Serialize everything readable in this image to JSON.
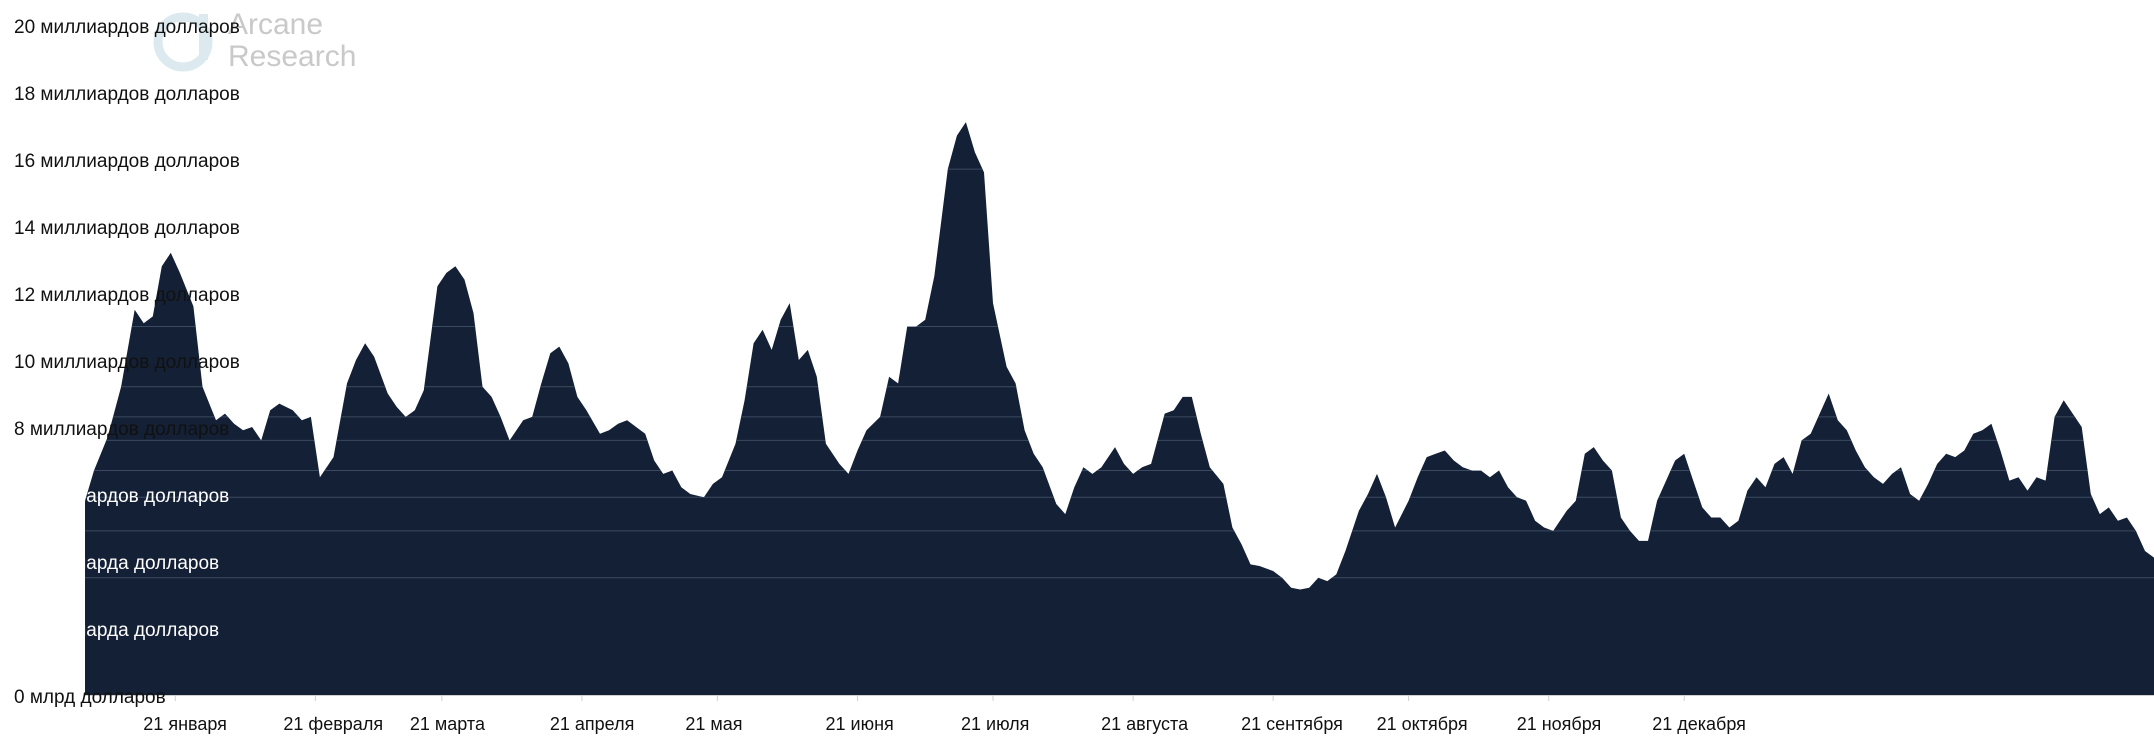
{
  "logo": {
    "line1": "Arcane",
    "line2": "Research",
    "icon": "arcane-logo-icon",
    "color": "#c9c9c9"
  },
  "colors": {
    "area": "#142035",
    "band": "#3b4a60",
    "axis": "#d0d0d0"
  },
  "chart_data": {
    "type": "area",
    "title": "",
    "xlabel": "",
    "ylabel": "",
    "ylim": [
      0,
      20
    ],
    "grid": false,
    "y_ticks": [
      {
        "value": 0,
        "label": "0 млрд долларов"
      },
      {
        "value": 2,
        "label": "2 миллиарда долларов"
      },
      {
        "value": 4,
        "label": "4 миллиарда долларов"
      },
      {
        "value": 6,
        "label": "6 миллиардов долларов"
      },
      {
        "value": 8,
        "label": "8 миллиардов долларов"
      },
      {
        "value": 10,
        "label": "10 миллиардов долларов"
      },
      {
        "value": 12,
        "label": "12 миллиардов долларов"
      },
      {
        "value": 14,
        "label": "14 миллиардов долларов"
      },
      {
        "value": 16,
        "label": "16 миллиардов долларов"
      },
      {
        "value": 18,
        "label": "18 миллиардов долларов"
      },
      {
        "value": 20,
        "label": "20 миллиардов долларов"
      }
    ],
    "x_ticks": [
      {
        "label": "21 января",
        "x": "2021-01-21"
      },
      {
        "label": "21 февраля",
        "x": "2021-02-21"
      },
      {
        "label": "21 марта",
        "x": "2021-03-21"
      },
      {
        "label": "21 апреля",
        "x": "2021-04-21"
      },
      {
        "label": "21 мая",
        "x": "2021-05-21"
      },
      {
        "label": "21 июня",
        "x": "2021-06-21"
      },
      {
        "label": "21 июля",
        "x": "2021-07-21"
      },
      {
        "label": "21 августа",
        "x": "2021-08-21"
      },
      {
        "label": "21 сентября",
        "x": "2021-09-21"
      },
      {
        "label": "21 октября",
        "x": "2021-10-21"
      },
      {
        "label": "21 ноября",
        "x": "2021-11-21"
      },
      {
        "label": "21 декабря",
        "x": "2021-12-21"
      }
    ],
    "series": [
      {
        "points": [
          [
            "2021-01-01",
            5.8
          ],
          [
            "2021-01-03",
            6.7
          ],
          [
            "2021-01-06",
            7.7
          ],
          [
            "2021-01-09",
            9.2
          ],
          [
            "2021-01-12",
            11.5
          ],
          [
            "2021-01-14",
            11.1
          ],
          [
            "2021-01-16",
            11.3
          ],
          [
            "2021-01-18",
            12.8
          ],
          [
            "2021-01-20",
            13.2
          ],
          [
            "2021-01-22",
            12.6
          ],
          [
            "2021-01-25",
            11.6
          ],
          [
            "2021-01-27",
            9.2
          ],
          [
            "2021-01-30",
            8.2
          ],
          [
            "2021-02-01",
            8.4
          ],
          [
            "2021-02-03",
            8.1
          ],
          [
            "2021-02-05",
            7.9
          ],
          [
            "2021-02-07",
            8.0
          ],
          [
            "2021-02-09",
            7.6
          ],
          [
            "2021-02-11",
            8.5
          ],
          [
            "2021-02-13",
            8.7
          ],
          [
            "2021-02-16",
            8.5
          ],
          [
            "2021-02-18",
            8.2
          ],
          [
            "2021-02-20",
            8.3
          ],
          [
            "2021-02-22",
            6.5
          ],
          [
            "2021-02-25",
            7.1
          ],
          [
            "2021-02-28",
            9.3
          ],
          [
            "2021-03-02",
            10.0
          ],
          [
            "2021-03-04",
            10.5
          ],
          [
            "2021-03-06",
            10.1
          ],
          [
            "2021-03-09",
            9.0
          ],
          [
            "2021-03-11",
            8.6
          ],
          [
            "2021-03-13",
            8.3
          ],
          [
            "2021-03-15",
            8.5
          ],
          [
            "2021-03-17",
            9.1
          ],
          [
            "2021-03-20",
            12.2
          ],
          [
            "2021-03-22",
            12.6
          ],
          [
            "2021-03-24",
            12.8
          ],
          [
            "2021-03-26",
            12.4
          ],
          [
            "2021-03-28",
            11.4
          ],
          [
            "2021-03-30",
            9.2
          ],
          [
            "2021-04-01",
            8.9
          ],
          [
            "2021-04-03",
            8.3
          ],
          [
            "2021-04-05",
            7.6
          ],
          [
            "2021-04-08",
            8.2
          ],
          [
            "2021-04-10",
            8.3
          ],
          [
            "2021-04-12",
            9.3
          ],
          [
            "2021-04-14",
            10.2
          ],
          [
            "2021-04-16",
            10.4
          ],
          [
            "2021-04-18",
            9.9
          ],
          [
            "2021-04-20",
            8.9
          ],
          [
            "2021-04-22",
            8.5
          ],
          [
            "2021-04-25",
            7.8
          ],
          [
            "2021-04-27",
            7.9
          ],
          [
            "2021-04-29",
            8.1
          ],
          [
            "2021-05-01",
            8.2
          ],
          [
            "2021-05-03",
            8.0
          ],
          [
            "2021-05-05",
            7.8
          ],
          [
            "2021-05-07",
            7.0
          ],
          [
            "2021-05-09",
            6.6
          ],
          [
            "2021-05-11",
            6.7
          ],
          [
            "2021-05-13",
            6.2
          ],
          [
            "2021-05-15",
            6.0
          ],
          [
            "2021-05-18",
            5.9
          ],
          [
            "2021-05-20",
            6.3
          ],
          [
            "2021-05-22",
            6.5
          ],
          [
            "2021-05-25",
            7.5
          ],
          [
            "2021-05-27",
            8.8
          ],
          [
            "2021-05-29",
            10.5
          ],
          [
            "2021-05-31",
            10.9
          ],
          [
            "2021-06-02",
            10.3
          ],
          [
            "2021-06-04",
            11.2
          ],
          [
            "2021-06-06",
            11.7
          ],
          [
            "2021-06-08",
            10.0
          ],
          [
            "2021-06-10",
            10.3
          ],
          [
            "2021-06-12",
            9.5
          ],
          [
            "2021-06-14",
            7.5
          ],
          [
            "2021-06-17",
            6.9
          ],
          [
            "2021-06-19",
            6.6
          ],
          [
            "2021-06-21",
            7.3
          ],
          [
            "2021-06-23",
            7.9
          ],
          [
            "2021-06-26",
            8.3
          ],
          [
            "2021-06-28",
            9.5
          ],
          [
            "2021-06-30",
            9.3
          ],
          [
            "2021-07-02",
            11.0
          ],
          [
            "2021-07-04",
            11.0
          ],
          [
            "2021-07-06",
            11.2
          ],
          [
            "2021-07-08",
            12.5
          ],
          [
            "2021-07-11",
            15.7
          ],
          [
            "2021-07-13",
            16.7
          ],
          [
            "2021-07-15",
            17.1
          ],
          [
            "2021-07-17",
            16.2
          ],
          [
            "2021-07-19",
            15.6
          ],
          [
            "2021-07-21",
            11.7
          ],
          [
            "2021-07-24",
            9.8
          ],
          [
            "2021-07-26",
            9.3
          ],
          [
            "2021-07-28",
            7.9
          ],
          [
            "2021-07-30",
            7.2
          ],
          [
            "2021-08-01",
            6.8
          ],
          [
            "2021-08-04",
            5.7
          ],
          [
            "2021-08-06",
            5.4
          ],
          [
            "2021-08-08",
            6.2
          ],
          [
            "2021-08-10",
            6.8
          ],
          [
            "2021-08-12",
            6.6
          ],
          [
            "2021-08-14",
            6.8
          ],
          [
            "2021-08-17",
            7.4
          ],
          [
            "2021-08-19",
            6.9
          ],
          [
            "2021-08-21",
            6.6
          ],
          [
            "2021-08-23",
            6.8
          ],
          [
            "2021-08-25",
            6.9
          ],
          [
            "2021-08-28",
            8.4
          ],
          [
            "2021-08-30",
            8.5
          ],
          [
            "2021-09-01",
            8.9
          ],
          [
            "2021-09-03",
            8.9
          ],
          [
            "2021-09-05",
            7.8
          ],
          [
            "2021-09-07",
            6.8
          ],
          [
            "2021-09-10",
            6.3
          ],
          [
            "2021-09-12",
            5.0
          ],
          [
            "2021-09-14",
            4.5
          ],
          [
            "2021-09-16",
            3.9
          ],
          [
            "2021-09-18",
            3.85
          ],
          [
            "2021-09-21",
            3.7
          ],
          [
            "2021-09-23",
            3.5
          ],
          [
            "2021-09-25",
            3.2
          ],
          [
            "2021-09-27",
            3.15
          ],
          [
            "2021-09-29",
            3.2
          ],
          [
            "2021-10-01",
            3.5
          ],
          [
            "2021-10-03",
            3.4
          ],
          [
            "2021-10-05",
            3.6
          ],
          [
            "2021-10-07",
            4.3
          ],
          [
            "2021-10-10",
            5.5
          ],
          [
            "2021-10-12",
            6.0
          ],
          [
            "2021-10-14",
            6.6
          ],
          [
            "2021-10-16",
            5.9
          ],
          [
            "2021-10-18",
            5.0
          ],
          [
            "2021-10-21",
            5.8
          ],
          [
            "2021-10-23",
            6.5
          ],
          [
            "2021-10-25",
            7.1
          ],
          [
            "2021-10-27",
            7.2
          ],
          [
            "2021-10-29",
            7.3
          ],
          [
            "2021-10-31",
            7.0
          ],
          [
            "2021-11-02",
            6.8
          ],
          [
            "2021-11-04",
            6.7
          ],
          [
            "2021-11-06",
            6.7
          ],
          [
            "2021-11-08",
            6.5
          ],
          [
            "2021-11-10",
            6.7
          ],
          [
            "2021-11-12",
            6.2
          ],
          [
            "2021-11-14",
            5.9
          ],
          [
            "2021-11-16",
            5.8
          ],
          [
            "2021-11-18",
            5.2
          ],
          [
            "2021-11-20",
            5.0
          ],
          [
            "2021-11-22",
            4.9
          ],
          [
            "2021-11-25",
            5.5
          ],
          [
            "2021-11-27",
            5.8
          ],
          [
            "2021-11-29",
            7.2
          ],
          [
            "2021-12-01",
            7.4
          ],
          [
            "2021-12-03",
            7.0
          ],
          [
            "2021-12-05",
            6.7
          ],
          [
            "2021-12-07",
            5.3
          ],
          [
            "2021-12-09",
            4.9
          ],
          [
            "2021-12-11",
            4.6
          ],
          [
            "2021-12-13",
            4.6
          ],
          [
            "2021-12-15",
            5.8
          ],
          [
            "2021-12-17",
            6.4
          ],
          [
            "2021-12-19",
            7.0
          ],
          [
            "2021-12-21",
            7.2
          ],
          [
            "2021-12-23",
            6.4
          ],
          [
            "2021-12-25",
            5.6
          ],
          [
            "2021-12-27",
            5.3
          ],
          [
            "2021-12-29",
            5.3
          ],
          [
            "2021-12-31",
            5.0
          ],
          [
            "2022-01-02",
            5.2
          ],
          [
            "2022-01-04",
            6.1
          ],
          [
            "2022-01-06",
            6.5
          ],
          [
            "2022-01-08",
            6.2
          ],
          [
            "2022-01-10",
            6.9
          ],
          [
            "2022-01-12",
            7.1
          ],
          [
            "2022-01-14",
            6.6
          ],
          [
            "2022-01-16",
            7.6
          ],
          [
            "2022-01-18",
            7.8
          ],
          [
            "2022-01-20",
            8.4
          ],
          [
            "2022-01-22",
            9.0
          ],
          [
            "2022-01-24",
            8.2
          ],
          [
            "2022-01-26",
            7.9
          ],
          [
            "2022-01-28",
            7.3
          ],
          [
            "2022-01-30",
            6.8
          ],
          [
            "2022-02-01",
            6.5
          ],
          [
            "2022-02-03",
            6.3
          ],
          [
            "2022-02-05",
            6.6
          ],
          [
            "2022-02-07",
            6.8
          ],
          [
            "2022-02-09",
            6.0
          ],
          [
            "2022-02-11",
            5.8
          ],
          [
            "2022-02-13",
            6.3
          ],
          [
            "2022-02-15",
            6.9
          ],
          [
            "2022-02-17",
            7.2
          ],
          [
            "2022-02-19",
            7.1
          ],
          [
            "2022-02-21",
            7.3
          ],
          [
            "2022-02-23",
            7.8
          ],
          [
            "2022-02-25",
            7.9
          ],
          [
            "2022-02-27",
            8.1
          ],
          [
            "2022-03-01",
            7.3
          ],
          [
            "2022-03-03",
            6.4
          ],
          [
            "2022-03-05",
            6.5
          ],
          [
            "2022-03-07",
            6.1
          ],
          [
            "2022-03-09",
            6.5
          ],
          [
            "2022-03-11",
            6.4
          ],
          [
            "2022-03-13",
            8.3
          ],
          [
            "2022-03-15",
            8.8
          ],
          [
            "2022-03-17",
            8.4
          ],
          [
            "2022-03-19",
            8.0
          ],
          [
            "2022-03-21",
            6.0
          ],
          [
            "2022-03-23",
            5.4
          ],
          [
            "2022-03-25",
            5.6
          ],
          [
            "2022-03-27",
            5.2
          ],
          [
            "2022-03-29",
            5.3
          ],
          [
            "2022-03-31",
            4.9
          ],
          [
            "2022-04-02",
            4.3
          ],
          [
            "2022-04-04",
            4.1
          ]
        ]
      }
    ]
  }
}
